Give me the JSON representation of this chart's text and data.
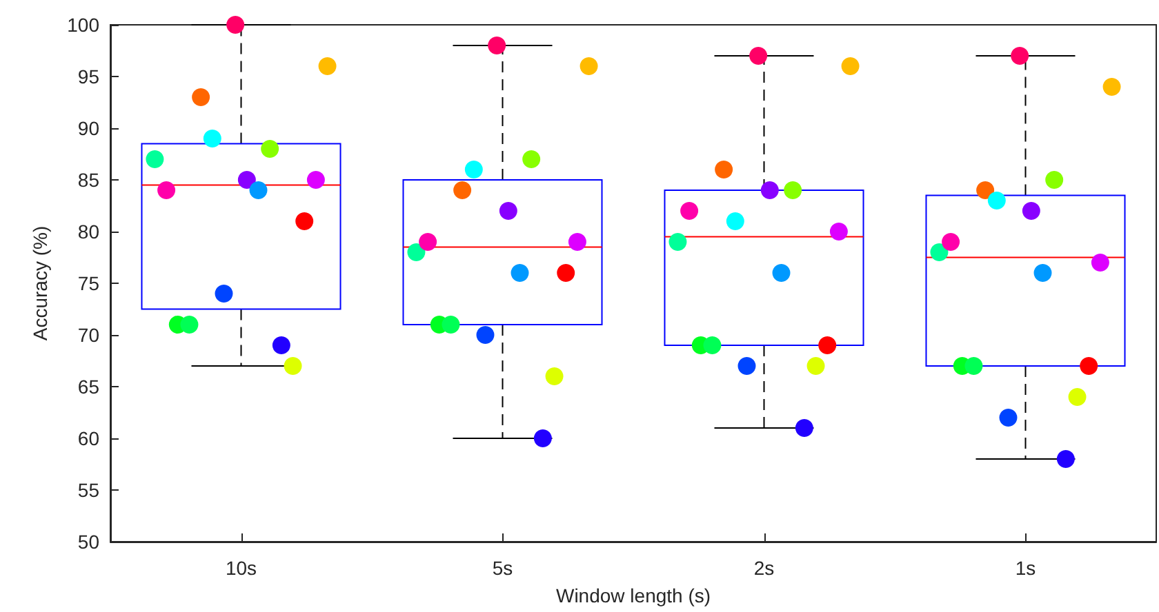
{
  "chart_data": {
    "type": "box",
    "xlabel": "Window length (s)",
    "ylabel": "Accuracy (%)",
    "categories": [
      "10s",
      "5s",
      "2s",
      "1s"
    ],
    "boxes": [
      {
        "low": 67,
        "q1": 72.5,
        "median": 84.5,
        "q3": 88.5,
        "high": 100
      },
      {
        "low": 60,
        "q1": 71,
        "median": 78.5,
        "q3": 85,
        "high": 98
      },
      {
        "low": 61,
        "q1": 69,
        "median": 79.5,
        "q3": 84,
        "high": 97
      },
      {
        "low": 58,
        "q1": 67,
        "median": 77.5,
        "q3": 83.5,
        "high": 97
      }
    ],
    "ylim": [
      50,
      100
    ],
    "yticks": [
      50,
      55,
      60,
      65,
      70,
      75,
      80,
      85,
      90,
      95,
      100
    ],
    "grid": false,
    "marker": "circle",
    "series": [
      {
        "type": "scatter",
        "color": "#00ff99",
        "x": [
          "10s",
          "5s",
          "2s",
          "1s"
        ],
        "values": [
          87,
          78,
          79,
          78
        ]
      },
      {
        "type": "scatter",
        "color": "#ff00aa",
        "x": [
          "10s",
          "5s",
          "2s",
          "1s"
        ],
        "values": [
          84,
          79,
          82,
          79
        ]
      },
      {
        "type": "scatter",
        "color": "#00ff22",
        "x": [
          "10s",
          "5s",
          "2s",
          "1s"
        ],
        "values": [
          71,
          71,
          69,
          67
        ]
      },
      {
        "type": "scatter",
        "color": "#00ff55",
        "x": [
          "10s",
          "5s",
          "2s",
          "1s"
        ],
        "values": [
          71,
          71,
          69,
          67
        ]
      },
      {
        "type": "scatter",
        "color": "#ff6600",
        "x": [
          "10s",
          "5s",
          "2s",
          "1s"
        ],
        "values": [
          93,
          84,
          86,
          84
        ]
      },
      {
        "type": "scatter",
        "color": "#00ffff",
        "x": [
          "10s",
          "5s",
          "2s",
          "1s"
        ],
        "values": [
          89,
          86,
          81,
          83
        ]
      },
      {
        "type": "scatter",
        "color": "#0044ff",
        "x": [
          "10s",
          "5s",
          "2s",
          "1s"
        ],
        "values": [
          74,
          70,
          67,
          62
        ]
      },
      {
        "type": "scatter",
        "color": "#ff0066",
        "x": [
          "10s",
          "5s",
          "2s",
          "1s"
        ],
        "values": [
          100,
          98,
          97,
          97
        ]
      },
      {
        "type": "scatter",
        "color": "#8800ff",
        "x": [
          "10s",
          "5s",
          "2s",
          "1s"
        ],
        "values": [
          85,
          82,
          84,
          82
        ]
      },
      {
        "type": "scatter",
        "color": "#0099ff",
        "x": [
          "10s",
          "5s",
          "2s",
          "1s"
        ],
        "values": [
          84,
          76,
          76,
          76
        ]
      },
      {
        "type": "scatter",
        "color": "#88ff00",
        "x": [
          "10s",
          "5s",
          "2s",
          "1s"
        ],
        "values": [
          88,
          87,
          84,
          85
        ]
      },
      {
        "type": "scatter",
        "color": "#2200ff",
        "x": [
          "10s",
          "5s",
          "2s",
          "1s"
        ],
        "values": [
          69,
          60,
          61,
          58
        ]
      },
      {
        "type": "scatter",
        "color": "#ddff00",
        "x": [
          "10s",
          "5s",
          "2s",
          "1s"
        ],
        "values": [
          67,
          66,
          67,
          64
        ]
      },
      {
        "type": "scatter",
        "color": "#ff0000",
        "x": [
          "10s",
          "5s",
          "2s",
          "1s"
        ],
        "values": [
          81,
          76,
          69,
          67
        ]
      },
      {
        "type": "scatter",
        "color": "#dd00ff",
        "x": [
          "10s",
          "5s",
          "2s",
          "1s"
        ],
        "values": [
          85,
          79,
          80,
          77
        ]
      },
      {
        "type": "scatter",
        "color": "#ffbb00",
        "x": [
          "10s",
          "5s",
          "2s",
          "1s"
        ],
        "values": [
          96,
          96,
          96,
          94
        ]
      }
    ]
  }
}
